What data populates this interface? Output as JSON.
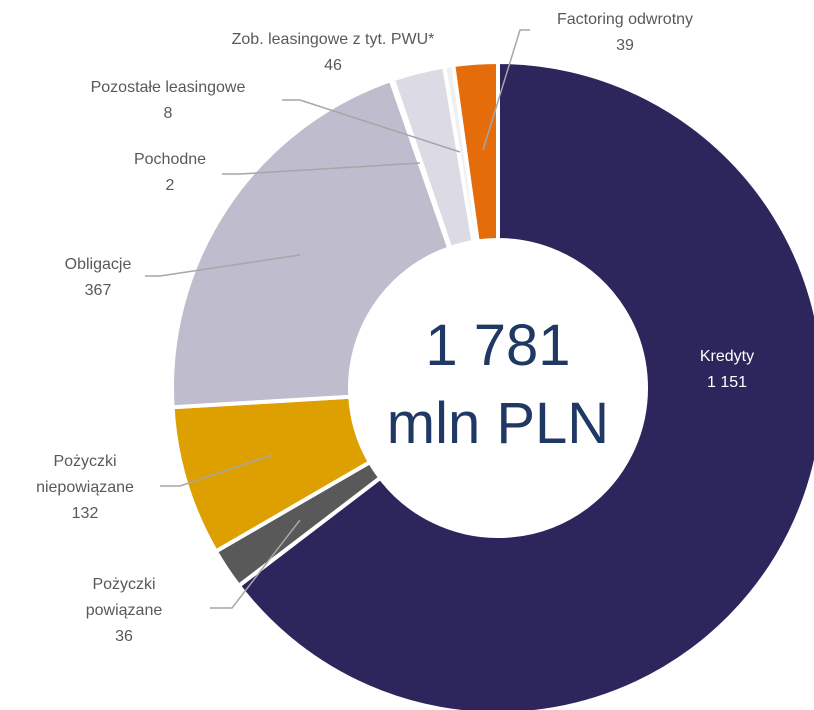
{
  "chart_data": {
    "type": "donut",
    "categories": [
      "Kredyty",
      "Pożyczki powiązane",
      "Pożyczki niepowiązane",
      "Obligacje",
      "Pochodne",
      "Zob. leasingowe z tyt. PWU*",
      "Pozostałe leasingowe",
      "Factoring odwrotny"
    ],
    "values": [
      1151,
      36,
      132,
      367,
      2,
      46,
      8,
      39
    ],
    "value_labels": [
      "1 151",
      "36",
      "132",
      "367",
      "2",
      "46",
      "8",
      "39"
    ],
    "colors": [
      "#2c265c",
      "#595959",
      "#dea000",
      "#bfbccd",
      "#e8e8ee",
      "#dcdbe5",
      "#f0f0f0",
      "#e46c0a"
    ],
    "center_text": [
      "1 781",
      "mln PLN"
    ]
  }
}
